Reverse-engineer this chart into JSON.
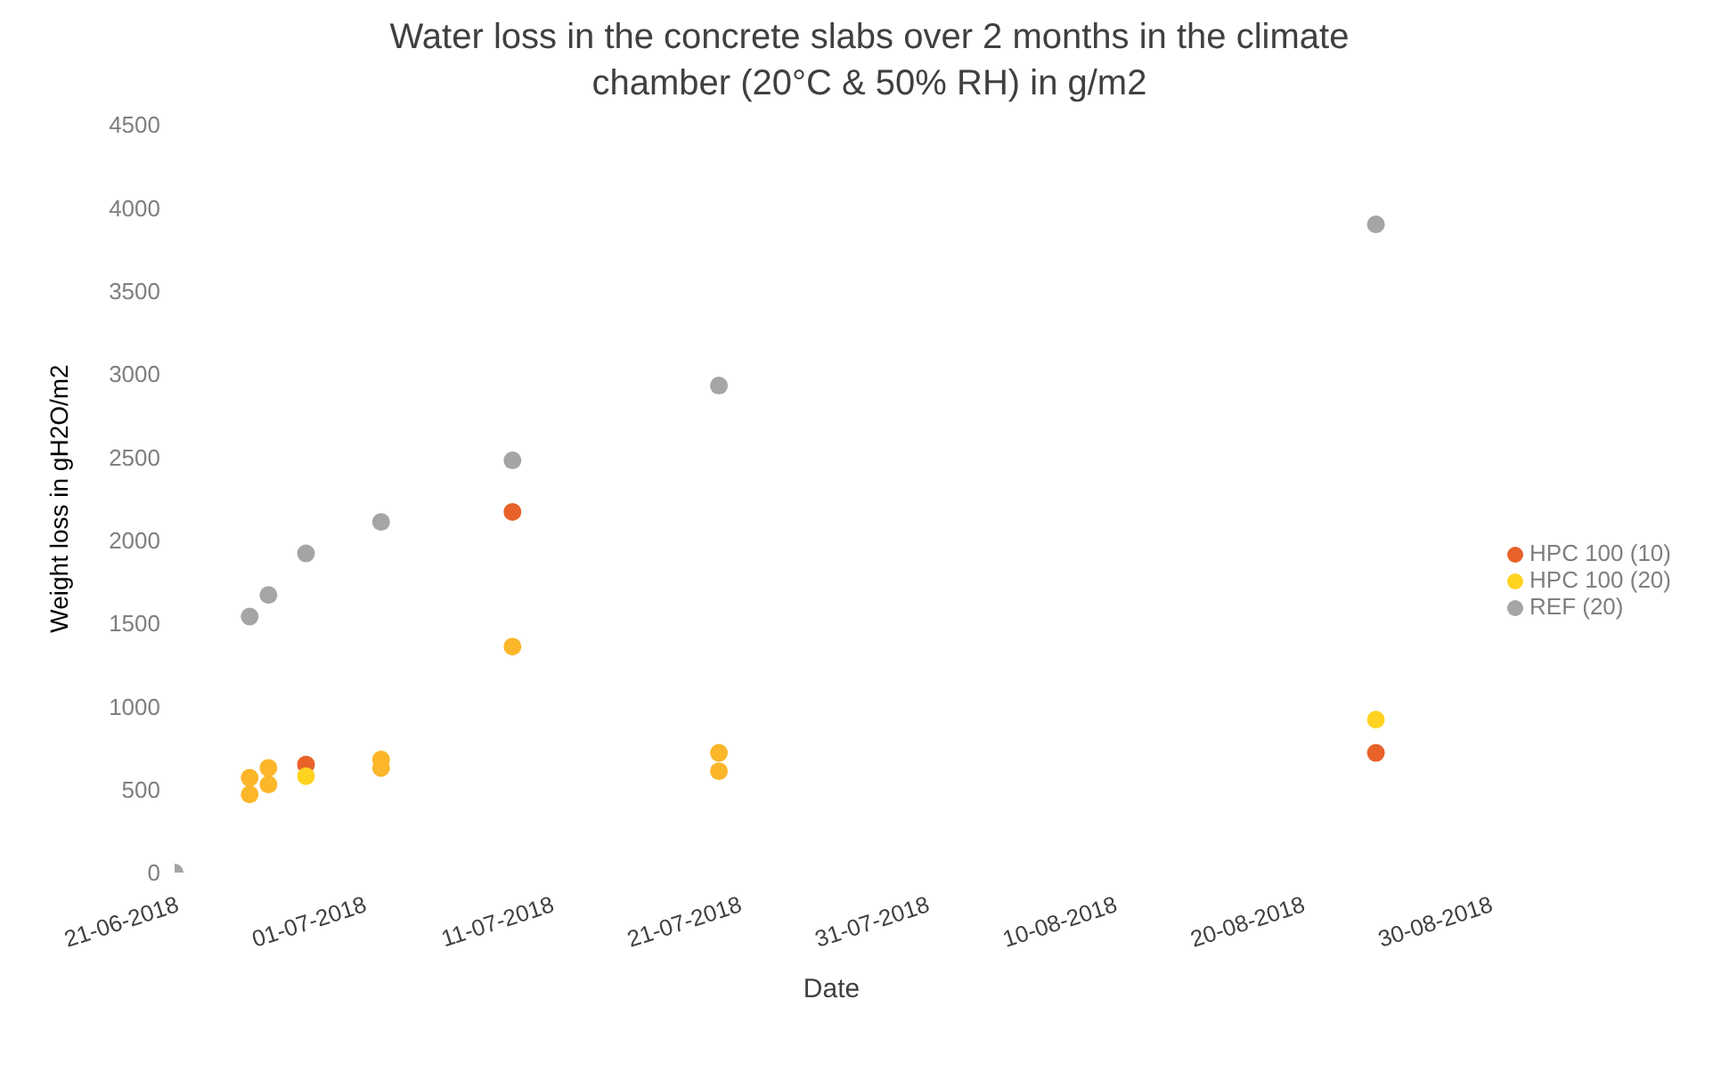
{
  "chart_data": {
    "type": "scatter",
    "title": "Water loss in the concrete slabs over 2 months in the climate chamber (20°C & 50% RH) in g/m2",
    "xlabel": "Date",
    "ylabel": "Weight loss  in gH2O/m2",
    "xlim": [
      "2018-06-21",
      "2018-08-30"
    ],
    "xticks": [
      {
        "value": "2018-06-21",
        "label": "21-06-2018"
      },
      {
        "value": "2018-07-01",
        "label": "01-07-2018"
      },
      {
        "value": "2018-07-11",
        "label": "11-07-2018"
      },
      {
        "value": "2018-07-21",
        "label": "21-07-2018"
      },
      {
        "value": "2018-07-31",
        "label": "31-07-2018"
      },
      {
        "value": "2018-08-10",
        "label": "10-08-2018"
      },
      {
        "value": "2018-08-20",
        "label": "20-08-2018"
      },
      {
        "value": "2018-08-30",
        "label": "30-08-2018"
      }
    ],
    "ylim": [
      0,
      4500
    ],
    "yticks": [
      0,
      500,
      1000,
      1500,
      2000,
      2500,
      3000,
      3500,
      4000,
      4500
    ],
    "grid": false,
    "legend": "right",
    "marker": "circle",
    "series": [
      {
        "name": "HPC 100 (10)",
        "color": "#e8622a",
        "x": [
          "2018-06-25",
          "2018-06-26",
          "2018-06-28",
          "2018-07-02",
          "2018-07-09",
          "2018-07-20",
          "2018-08-24"
        ],
        "values": [
          570,
          630,
          650,
          680,
          2170,
          720,
          720
        ],
        "colors": [
          "#fbb62a",
          "#fbb62a",
          "#e8622a",
          "#fbb62a",
          "#e8622a",
          "#fbb62a",
          "#e8622a"
        ]
      },
      {
        "name": "HPC 100 (20)",
        "color": "#ffd320",
        "x": [
          "2018-06-25",
          "2018-06-26",
          "2018-06-28",
          "2018-07-02",
          "2018-07-09",
          "2018-07-20",
          "2018-08-24"
        ],
        "values": [
          470,
          530,
          580,
          630,
          1360,
          610,
          920
        ],
        "colors": [
          "#fbb62a",
          "#fbb62a",
          "#ffd320",
          "#fbb62a",
          "#fbb62a",
          "#fbb62a",
          "#ffd320"
        ]
      },
      {
        "name": "REF (20)",
        "color": "#a5a5a5",
        "x": [
          "2018-06-21",
          "2018-06-25",
          "2018-06-26",
          "2018-06-28",
          "2018-07-02",
          "2018-07-09",
          "2018-07-20",
          "2018-08-24"
        ],
        "values": [
          0,
          1540,
          1670,
          1920,
          2110,
          2480,
          2930,
          3900
        ]
      }
    ]
  }
}
